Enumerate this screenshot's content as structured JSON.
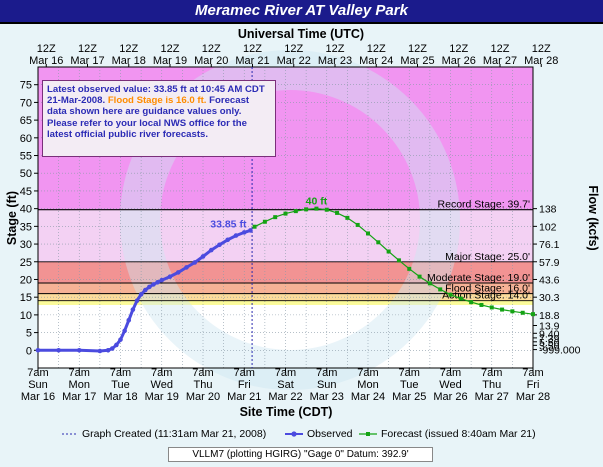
{
  "title": "Meramec River  AT Valley Park",
  "top_axis_label": "Universal Time (UTC)",
  "bottom_axis_label": "Site Time (CDT)",
  "y_left_label": "Stage (ft)",
  "y_right_label": "Flow (kcfs)",
  "info": {
    "line_a": "Latest observed value: 33.85 ft at 10:45 AM CDT 21-Mar-2008.",
    "flood_part": "Flood Stage is 16.0 ft.",
    "line_b": "Forecast data shown here are guidance values only. Please refer to your local NWS office for the latest official public river forecasts."
  },
  "footer": "VLLM7 (plotting HGIRG) \"Gage 0\" Datum: 392.9'",
  "legend": {
    "created": "Graph Created (11:31am Mar 21, 2008)",
    "observed": "Observed",
    "forecast": "Forecast (issued 8:40am Mar 21)"
  },
  "colors": {
    "observed": "#4b4bdf",
    "forecast": "#14a314",
    "record_zone": "#ee82ee",
    "major_zone": "#f08080",
    "moderate_zone": "#f4a484",
    "flood_zone": "#fbd68a",
    "action_zone": "#fbfb9a",
    "title_bg": "#1b1b8c"
  },
  "chart_data": {
    "type": "line",
    "title": "Meramec River  AT Valley Park",
    "xlabel": "Site Time (CDT)",
    "ylabel": "Stage (ft)",
    "y2label": "Flow (kcfs)",
    "ylim": [
      -5,
      80
    ],
    "grid": true,
    "top_ticks": [
      {
        "hour": "12Z",
        "day": "Mar 16"
      },
      {
        "hour": "12Z",
        "day": "Mar 17"
      },
      {
        "hour": "12Z",
        "day": "Mar 18"
      },
      {
        "hour": "12Z",
        "day": "Mar 19"
      },
      {
        "hour": "12Z",
        "day": "Mar 20"
      },
      {
        "hour": "12Z",
        "day": "Mar 21"
      },
      {
        "hour": "12Z",
        "day": "Mar 22"
      },
      {
        "hour": "12Z",
        "day": "Mar 23"
      },
      {
        "hour": "12Z",
        "day": "Mar 24"
      },
      {
        "hour": "12Z",
        "day": "Mar 25"
      },
      {
        "hour": "12Z",
        "day": "Mar 26"
      },
      {
        "hour": "12Z",
        "day": "Mar 27"
      },
      {
        "hour": "12Z",
        "day": "Mar 28"
      }
    ],
    "bottom_ticks": [
      {
        "time": "7am",
        "dow": "Sun",
        "date": "Mar 16"
      },
      {
        "time": "7am",
        "dow": "Mon",
        "date": "Mar 17"
      },
      {
        "time": "7am",
        "dow": "Tue",
        "date": "Mar 18"
      },
      {
        "time": "7am",
        "dow": "Wed",
        "date": "Mar 19"
      },
      {
        "time": "7am",
        "dow": "Thu",
        "date": "Mar 20"
      },
      {
        "time": "7am",
        "dow": "Fri",
        "date": "Mar 21"
      },
      {
        "time": "7am",
        "dow": "Sat",
        "date": "Mar 22"
      },
      {
        "time": "7am",
        "dow": "Sun",
        "date": "Mar 23"
      },
      {
        "time": "7am",
        "dow": "Mon",
        "date": "Mar 24"
      },
      {
        "time": "7am",
        "dow": "Tue",
        "date": "Mar 25"
      },
      {
        "time": "7am",
        "dow": "Wed",
        "date": "Mar 26"
      },
      {
        "time": "7am",
        "dow": "Thu",
        "date": "Mar 27"
      },
      {
        "time": "7am",
        "dow": "Fri",
        "date": "Mar 28"
      }
    ],
    "y_ticks": [
      0,
      5,
      10,
      15,
      20,
      25,
      30,
      35,
      40,
      45,
      50,
      55,
      60,
      65,
      70,
      75
    ],
    "flow_ticks": [
      {
        "stage": 40.0,
        "label": "138"
      },
      {
        "stage": 35.0,
        "label": "102"
      },
      {
        "stage": 30.0,
        "label": "76.1"
      },
      {
        "stage": 25.0,
        "label": "57.9"
      },
      {
        "stage": 20.0,
        "label": "43.6"
      },
      {
        "stage": 15.0,
        "label": "30.3"
      },
      {
        "stage": 10.0,
        "label": "18.8"
      },
      {
        "stage": 7.0,
        "label": "13.9"
      },
      {
        "stage": 4.8,
        "label": "9.40"
      },
      {
        "stage": 3.5,
        "label": "7.39"
      },
      {
        "stage": 2.4,
        "label": "5.50"
      },
      {
        "stage": 1.4,
        "label": "3.50"
      },
      {
        "stage": 0.2,
        "label": "-999.000"
      }
    ],
    "stages": [
      {
        "name": "Record Stage: 39.7'",
        "value": 39.7,
        "color": "#ee82ee"
      },
      {
        "name": "Major Stage: 25.0'",
        "value": 25.0,
        "color": "#f08080"
      },
      {
        "name": "Moderate Stage: 19.0'",
        "value": 19.0,
        "color": "#f4a484"
      },
      {
        "name": "Flood Stage: 16.0'",
        "value": 16.0,
        "color": "#fbd68a"
      },
      {
        "name": "Action Stage: 14.0'",
        "value": 14.0,
        "color": "#fbfb9a"
      }
    ],
    "created_day": 5.19,
    "series": [
      {
        "name": "Observed",
        "marker": "circle",
        "day": [
          0.0,
          0.5,
          1.0,
          1.5,
          1.7,
          1.8,
          1.9,
          2.0,
          2.1,
          2.2,
          2.3,
          2.4,
          2.5,
          2.6,
          2.7,
          2.8,
          2.9,
          3.0,
          3.2,
          3.4,
          3.6,
          3.8,
          4.0,
          4.2,
          4.4,
          4.6,
          4.8,
          5.0,
          5.15
        ],
        "stage": [
          0.0,
          0.0,
          0.0,
          -0.2,
          0.0,
          0.5,
          1.5,
          3.0,
          5.5,
          8.5,
          11.5,
          14.0,
          15.8,
          17.0,
          17.9,
          18.6,
          19.2,
          19.8,
          20.8,
          22.0,
          23.4,
          24.8,
          26.5,
          28.3,
          29.8,
          31.2,
          32.4,
          33.3,
          33.85
        ]
      },
      {
        "name": "Forecast",
        "marker": "square",
        "day": [
          5.25,
          5.5,
          5.75,
          6.0,
          6.25,
          6.5,
          6.75,
          7.0,
          7.25,
          7.5,
          7.75,
          8.0,
          8.25,
          8.5,
          8.75,
          9.0,
          9.25,
          9.5,
          9.75,
          10.0,
          10.25,
          10.5,
          10.75,
          11.0,
          11.25,
          11.5,
          11.75,
          12.0
        ],
        "stage": [
          34.9,
          36.3,
          37.6,
          38.6,
          39.3,
          39.8,
          40.0,
          39.7,
          38.8,
          37.4,
          35.4,
          33.0,
          30.5,
          27.9,
          25.4,
          23.0,
          20.8,
          18.9,
          17.2,
          15.7,
          14.6,
          13.6,
          12.8,
          12.1,
          11.5,
          11.0,
          10.6,
          10.2
        ]
      }
    ],
    "annotations": [
      {
        "text": "33.85 ft",
        "day": 5.15,
        "stage": 33.85
      },
      {
        "text": "40 ft",
        "day": 6.75,
        "stage": 40.0
      }
    ]
  }
}
